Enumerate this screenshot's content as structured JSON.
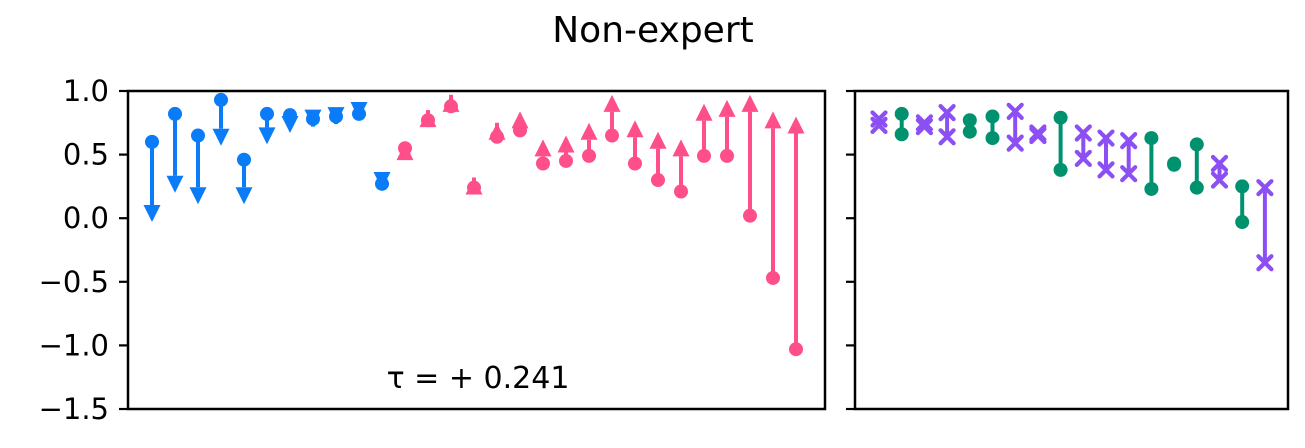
{
  "title": "Non-expert",
  "chart_data": [
    {
      "type": "arrow-dumbbell",
      "panel": "left",
      "ylim": [
        -1.5,
        1.0
      ],
      "y_ticks": [
        1.0,
        0.5,
        0.0,
        -0.5,
        -1.0,
        -1.5
      ],
      "y_tick_labels": [
        "1.0",
        "0.5",
        "0.0",
        "−0.5",
        "−1.0",
        "−1.5"
      ],
      "annotation": "τ = + 0.241",
      "colors": {
        "decrease": "#0a7cf8",
        "increase": "#ff4f8b"
      },
      "pairs": [
        {
          "start": 0.6,
          "end": -0.03,
          "dir": "down"
        },
        {
          "start": 0.82,
          "end": 0.2,
          "dir": "down"
        },
        {
          "start": 0.65,
          "end": 0.11,
          "dir": "down"
        },
        {
          "start": 0.93,
          "end": 0.57,
          "dir": "down"
        },
        {
          "start": 0.46,
          "end": 0.11,
          "dir": "down"
        },
        {
          "start": 0.82,
          "end": 0.58,
          "dir": "down"
        },
        {
          "start": 0.81,
          "end": 0.67,
          "dir": "down"
        },
        {
          "start": 0.78,
          "end": 0.72,
          "dir": "down"
        },
        {
          "start": 0.8,
          "end": 0.74,
          "dir": "down"
        },
        {
          "start": 0.82,
          "end": 0.78,
          "dir": "down"
        },
        {
          "start": 0.27,
          "end": 0.23,
          "dir": "down"
        },
        {
          "start": 0.55,
          "end": 0.59,
          "dir": "up"
        },
        {
          "start": 0.77,
          "end": 0.85,
          "dir": "up"
        },
        {
          "start": 0.88,
          "end": 0.97,
          "dir": "up"
        },
        {
          "start": 0.24,
          "end": 0.32,
          "dir": "up"
        },
        {
          "start": 0.64,
          "end": 0.75,
          "dir": "up"
        },
        {
          "start": 0.69,
          "end": 0.84,
          "dir": "up"
        },
        {
          "start": 0.43,
          "end": 0.62,
          "dir": "up"
        },
        {
          "start": 0.45,
          "end": 0.65,
          "dir": "up"
        },
        {
          "start": 0.49,
          "end": 0.75,
          "dir": "up"
        },
        {
          "start": 0.65,
          "end": 0.97,
          "dir": "up"
        },
        {
          "start": 0.43,
          "end": 0.77,
          "dir": "up"
        },
        {
          "start": 0.3,
          "end": 0.68,
          "dir": "up"
        },
        {
          "start": 0.21,
          "end": 0.62,
          "dir": "up"
        },
        {
          "start": 0.49,
          "end": 0.9,
          "dir": "up"
        },
        {
          "start": 0.49,
          "end": 0.93,
          "dir": "up"
        },
        {
          "start": 0.02,
          "end": 0.97,
          "dir": "up"
        },
        {
          "start": -0.47,
          "end": 0.84,
          "dir": "up"
        },
        {
          "start": -1.03,
          "end": 0.8,
          "dir": "up"
        }
      ]
    },
    {
      "type": "dumbbell",
      "panel": "right",
      "ylim": [
        -1.5,
        1.0
      ],
      "colors": {
        "circle": "#00916e",
        "cross": "#8c4ff3"
      },
      "pairs": [
        {
          "high": 0.78,
          "low": 0.73,
          "marker": "cross"
        },
        {
          "high": 0.82,
          "low": 0.66,
          "marker": "circle"
        },
        {
          "high": 0.75,
          "low": 0.72,
          "marker": "cross"
        },
        {
          "high": 0.83,
          "low": 0.64,
          "marker": "cross"
        },
        {
          "high": 0.77,
          "low": 0.68,
          "marker": "circle"
        },
        {
          "high": 0.8,
          "low": 0.63,
          "marker": "circle"
        },
        {
          "high": 0.84,
          "low": 0.59,
          "marker": "cross"
        },
        {
          "high": 0.67,
          "low": 0.65,
          "marker": "cross"
        },
        {
          "high": 0.79,
          "low": 0.38,
          "marker": "circle"
        },
        {
          "high": 0.67,
          "low": 0.47,
          "marker": "cross"
        },
        {
          "high": 0.63,
          "low": 0.38,
          "marker": "cross"
        },
        {
          "high": 0.61,
          "low": 0.35,
          "marker": "cross"
        },
        {
          "high": 0.63,
          "low": 0.23,
          "marker": "circle"
        },
        {
          "high": 0.43,
          "low": 0.42,
          "marker": "circle"
        },
        {
          "high": 0.58,
          "low": 0.24,
          "marker": "circle"
        },
        {
          "high": 0.43,
          "low": 0.3,
          "marker": "cross"
        },
        {
          "high": 0.25,
          "low": -0.03,
          "marker": "circle"
        },
        {
          "high": 0.24,
          "low": -0.35,
          "marker": "cross"
        }
      ]
    }
  ]
}
